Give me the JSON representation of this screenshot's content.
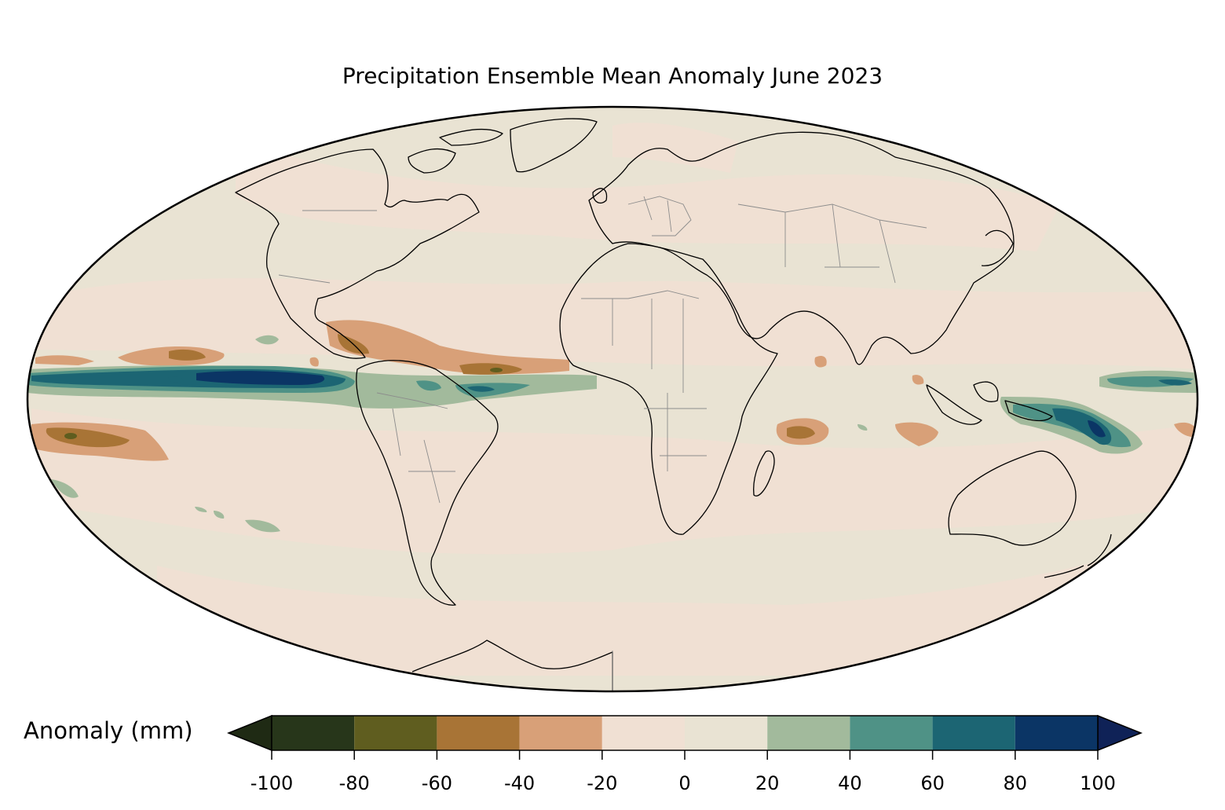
{
  "title": "Precipitation Ensemble Mean Anomaly June 2023",
  "colorbar": {
    "label": "Anomaly (mm)",
    "ticks": [
      "-100",
      "-80",
      "-60",
      "-40",
      "-20",
      "0",
      "20",
      "40",
      "60",
      "80",
      "100"
    ],
    "bins": [
      {
        "range": [
          -100,
          -80
        ],
        "color": "#27361a"
      },
      {
        "range": [
          -80,
          -60
        ],
        "color": "#5f5d1f"
      },
      {
        "range": [
          -60,
          -40
        ],
        "color": "#a87436"
      },
      {
        "range": [
          -40,
          -20
        ],
        "color": "#d8a078"
      },
      {
        "range": [
          -20,
          0
        ],
        "color": "#f0e0d3"
      },
      {
        "range": [
          0,
          20
        ],
        "color": "#e9e3d3"
      },
      {
        "range": [
          20,
          40
        ],
        "color": "#a2ba9c"
      },
      {
        "range": [
          40,
          60
        ],
        "color": "#4f9286"
      },
      {
        "range": [
          60,
          80
        ],
        "color": "#1c6573"
      },
      {
        "range": [
          80,
          100
        ],
        "color": "#0b3565"
      }
    ],
    "extend_low_color": "#1f2a14",
    "extend_high_color": "#0f2257"
  },
  "map": {
    "projection": "Mollweide",
    "background_color": "#e9e3d3"
  }
}
